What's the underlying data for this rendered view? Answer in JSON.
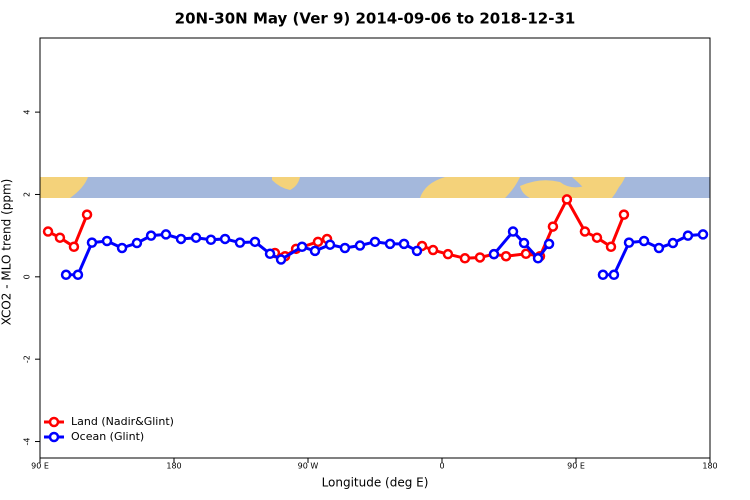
{
  "chart_data": {
    "type": "line",
    "title": "20N-30N May (Ver 9)   2014-09-06 to 2018-12-31",
    "x_label": "Longitude (deg E)",
    "y_label": "XCO2 - MLO trend (ppm)",
    "xlim": [
      90,
      540
    ],
    "xticks": [
      {
        "value": 90,
        "label": "90 E"
      },
      180,
      {
        "value": 270,
        "label": "90 W"
      },
      {
        "value": 360,
        "label": "0"
      },
      {
        "value": 450,
        "label": "90 E"
      },
      {
        "value": 540,
        "label": "180"
      }
    ],
    "ylim": [
      -4.4,
      5.8
    ],
    "yticks": [
      -4,
      -2,
      0,
      2,
      4
    ],
    "legend": "bottom-left",
    "series": [
      {
        "name": "Land (Nadir&Glint)",
        "color": "#ff0000",
        "x": [
          95.4,
          103.4,
          112.8,
          121.6,
          null,
          247.8,
          254.6,
          262,
          276.7,
          282.8,
          null,
          346.6,
          354,
          364,
          375.4,
          385.5,
          394.9,
          403,
          416.4,
          425.8,
          434.5,
          443.9,
          456,
          464.1,
          473.5,
          482.2
        ],
        "values": [
          1.1,
          0.95,
          0.73,
          1.51,
          null,
          0.58,
          0.5,
          0.68,
          0.85,
          0.92,
          null,
          0.75,
          0.65,
          0.55,
          0.45,
          0.47,
          0.55,
          0.5,
          0.56,
          0.5,
          1.22,
          1.88,
          1.1,
          0.95,
          0.73,
          1.51
        ]
      },
      {
        "name": "Ocean (Glint)",
        "color": "#0000ff",
        "x": [
          107.5,
          115.5,
          124.9,
          135,
          145.1,
          155.1,
          164.6,
          174.6,
          184.7,
          194.8,
          204.8,
          214.3,
          224.3,
          234.4,
          244.5,
          251.9,
          266,
          274.7,
          284.8,
          294.8,
          304.9,
          315,
          325.1,
          334.5,
          343.2,
          null,
          394.9,
          407.7,
          415.1,
          424.5,
          431.9,
          null,
          468.1,
          475.5,
          485.6,
          495.7,
          505.7,
          515.1,
          525.2,
          535.3
        ],
        "values": [
          0.05,
          0.05,
          0.83,
          0.87,
          0.7,
          0.82,
          1.0,
          1.03,
          0.92,
          0.95,
          0.9,
          0.92,
          0.83,
          0.85,
          0.56,
          0.42,
          0.73,
          0.63,
          0.78,
          0.7,
          0.76,
          0.85,
          0.8,
          0.8,
          0.63,
          null,
          0.55,
          1.1,
          0.82,
          0.45,
          0.8,
          null,
          0.05,
          0.05,
          0.83,
          0.87,
          0.7,
          0.82,
          1.0,
          1.03
        ]
      }
    ]
  }
}
